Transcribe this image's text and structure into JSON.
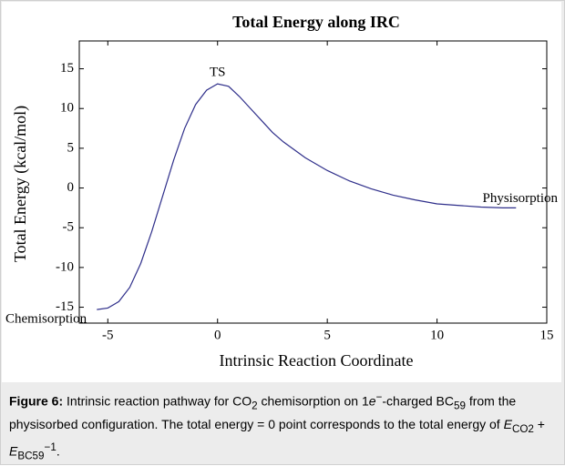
{
  "chart_data": {
    "type": "line",
    "title": "Total Energy along IRC",
    "x_label": "Intrinsic Reaction Coordinate",
    "y_label": "Total Energy (kcal/mol)",
    "x": [
      -5.5,
      -5,
      -4.5,
      -4,
      -3.5,
      -3,
      -2.5,
      -2,
      -1.5,
      -1,
      -0.5,
      0,
      0.5,
      1,
      1.5,
      2,
      2.5,
      3,
      4,
      5,
      6,
      7,
      8,
      9,
      10,
      11,
      12,
      13,
      13.6
    ],
    "series": [
      {
        "color": "#2e2e8a",
        "values": [
          -15.3,
          -15.1,
          -14.3,
          -12.5,
          -9.5,
          -5.5,
          -1,
          3.5,
          7.5,
          10.5,
          12.3,
          13.1,
          12.8,
          11.5,
          10,
          8.5,
          7,
          5.8,
          3.8,
          2.2,
          0.9,
          -0.1,
          -0.9,
          -1.5,
          -2,
          -2.2,
          -2.4,
          -2.5,
          -2.5
        ]
      }
    ],
    "xlim": [
      -6.3,
      15
    ],
    "ylim": [
      -17,
      18.5
    ],
    "xticks": [
      -5,
      0,
      5,
      10,
      15
    ],
    "yticks": [
      -15,
      -10,
      -5,
      0,
      5,
      10,
      15
    ],
    "annotations": [
      "TS",
      "Chemisorption",
      "Physisorption"
    ]
  },
  "caption": {
    "label": "Figure 6:",
    "parts": [
      " Intrinsic reaction pathway for CO",
      "2",
      " chemisorption on 1",
      "e",
      "−",
      "-charged BC",
      "59",
      " from the physisorbed configuration. The total energy = 0 point corresponds to the total energy of ",
      "E",
      "CO2",
      " + ",
      "E",
      "BC59",
      "−1",
      "."
    ]
  }
}
